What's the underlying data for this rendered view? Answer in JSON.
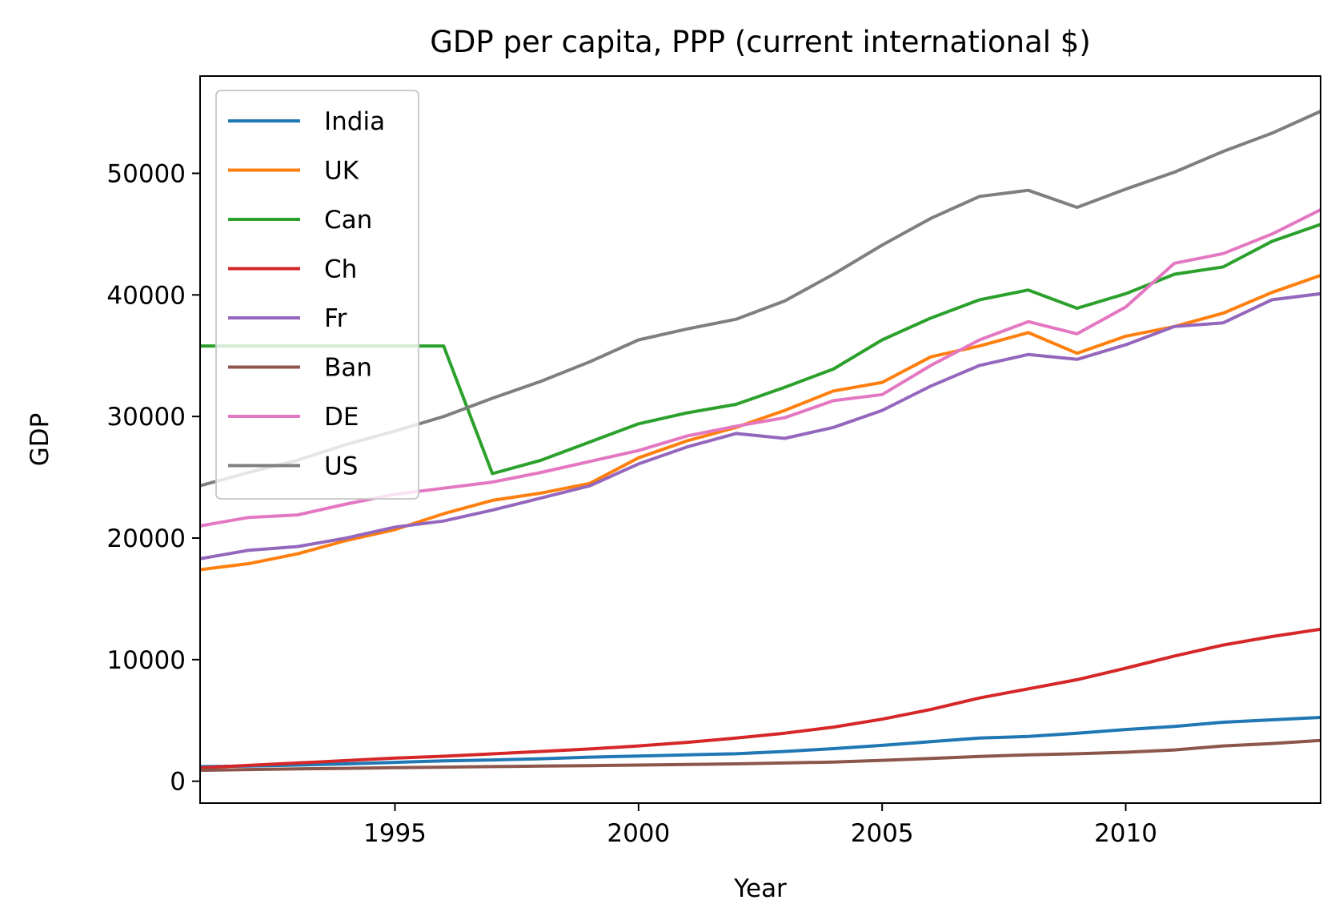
{
  "chart_data": {
    "type": "line",
    "title": "GDP per capita, PPP (current international $)",
    "xlabel": "Year",
    "ylabel": "GDP",
    "xlim": [
      1991,
      2014
    ],
    "ylim": [
      -1800,
      58000
    ],
    "xticks": [
      1995,
      2000,
      2005,
      2010
    ],
    "yticks": [
      0,
      10000,
      20000,
      30000,
      40000,
      50000
    ],
    "grid": false,
    "legend": "upper left",
    "x": [
      1991,
      1992,
      1993,
      1994,
      1995,
      1996,
      1997,
      1998,
      1999,
      2000,
      2001,
      2002,
      2003,
      2004,
      2005,
      2006,
      2007,
      2008,
      2009,
      2010,
      2011,
      2012,
      2013,
      2014
    ],
    "series": [
      {
        "name": "India",
        "color": "#1f77b4",
        "values": [
          1200,
          1250,
          1330,
          1430,
          1550,
          1670,
          1750,
          1850,
          1980,
          2070,
          2170,
          2260,
          2450,
          2680,
          2950,
          3250,
          3550,
          3680,
          3950,
          4250,
          4500,
          4850,
          5050,
          5250
        ]
      },
      {
        "name": "UK",
        "color": "#ff7f0e",
        "values": [
          17400,
          17900,
          18700,
          19800,
          20700,
          22000,
          23100,
          23700,
          24500,
          26600,
          28000,
          29100,
          30500,
          32100,
          32800,
          34900,
          35800,
          36900,
          35200,
          36600,
          37400,
          38500,
          40200,
          41600
        ]
      },
      {
        "name": "Can",
        "color": "#2ca02c",
        "values": [
          35800,
          35800,
          35800,
          35800,
          35800,
          35800,
          25300,
          26400,
          27900,
          29400,
          30300,
          31000,
          32400,
          33900,
          36300,
          38100,
          39600,
          40400,
          38900,
          40100,
          41700,
          42300,
          44400,
          45800
        ]
      },
      {
        "name": "Ch",
        "color": "#d62728",
        "values": [
          1100,
          1300,
          1500,
          1700,
          1900,
          2050,
          2250,
          2450,
          2650,
          2900,
          3200,
          3550,
          3950,
          4450,
          5100,
          5900,
          6850,
          7600,
          8350,
          9300,
          10300,
          11200,
          11900,
          12500
        ]
      },
      {
        "name": "Fr",
        "color": "#9467bd",
        "values": [
          18300,
          19000,
          19300,
          20000,
          20900,
          21400,
          22300,
          23300,
          24300,
          26100,
          27500,
          28600,
          28200,
          29100,
          30500,
          32500,
          34200,
          35100,
          34700,
          35900,
          37400,
          37700,
          39600,
          40100
        ]
      },
      {
        "name": "Ban",
        "color": "#8c564b",
        "values": [
          900,
          960,
          1020,
          1060,
          1110,
          1160,
          1200,
          1240,
          1280,
          1330,
          1380,
          1430,
          1500,
          1580,
          1720,
          1870,
          2030,
          2170,
          2260,
          2380,
          2570,
          2900,
          3100,
          3350
        ]
      },
      {
        "name": "DE",
        "color": "#e377c2",
        "values": [
          21000,
          21700,
          21900,
          22800,
          23600,
          24100,
          24600,
          25400,
          26300,
          27200,
          28400,
          29200,
          29900,
          31300,
          31800,
          34200,
          36300,
          37800,
          36800,
          39000,
          42600,
          43400,
          45000,
          47000
        ]
      },
      {
        "name": "US",
        "color": "#7f7f7f",
        "values": [
          24300,
          25400,
          26400,
          27700,
          28800,
          30000,
          31500,
          32900,
          34500,
          36300,
          37200,
          38000,
          39500,
          41700,
          44100,
          46300,
          48100,
          48600,
          47200,
          48700,
          50100,
          51800,
          53300,
          55100
        ]
      }
    ]
  }
}
